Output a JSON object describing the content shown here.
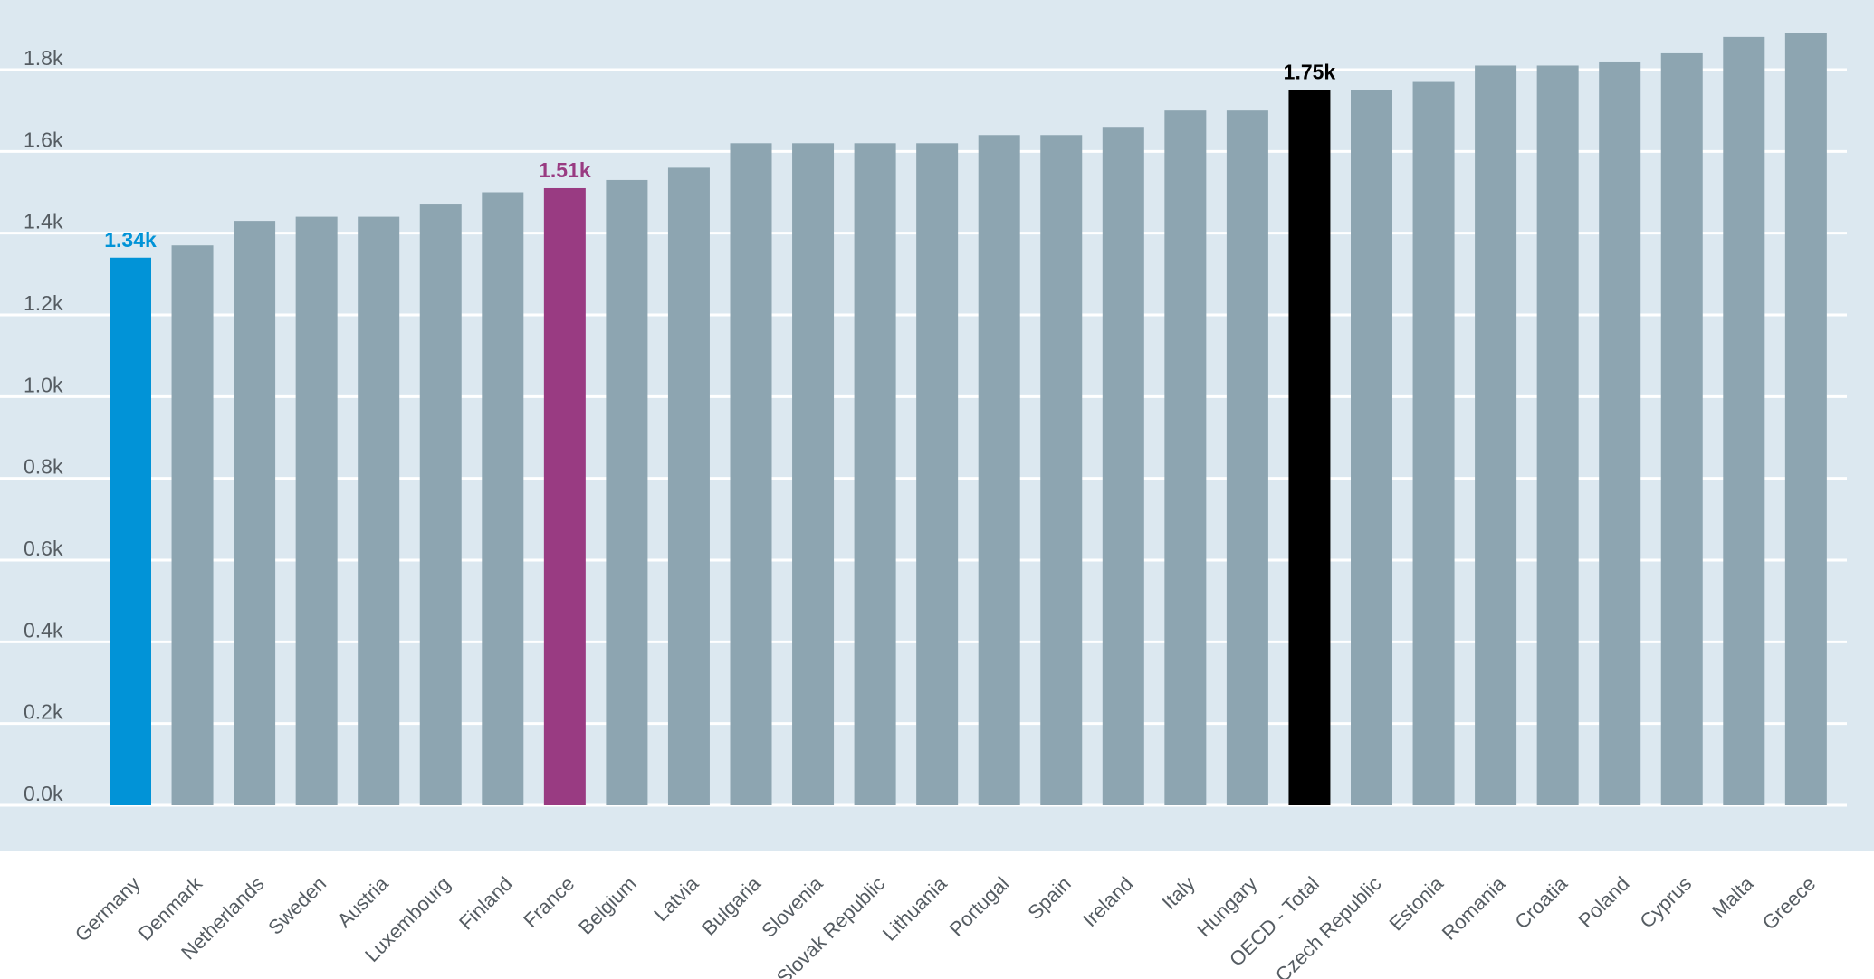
{
  "chart_data": {
    "type": "bar",
    "title": "",
    "xlabel": "",
    "ylabel": "",
    "ylim": [
      0,
      1800
    ],
    "yticks": [
      {
        "value": 0,
        "label": "0.0k"
      },
      {
        "value": 200,
        "label": "0.2k"
      },
      {
        "value": 400,
        "label": "0.4k"
      },
      {
        "value": 600,
        "label": "0.6k"
      },
      {
        "value": 800,
        "label": "0.8k"
      },
      {
        "value": 1000,
        "label": "1.0k"
      },
      {
        "value": 1200,
        "label": "1.2k"
      },
      {
        "value": 1400,
        "label": "1.4k"
      },
      {
        "value": 1600,
        "label": "1.6k"
      },
      {
        "value": 1800,
        "label": "1.8k"
      }
    ],
    "grid": true,
    "legend": "none",
    "colors": {
      "default": "#8da5b1",
      "Germany": "#0193d7",
      "France": "#993b82",
      "OECD - Total": "#000000",
      "plot_background": "#dce8f0",
      "gridline": "#ffffff"
    },
    "categories": [
      "Germany",
      "Denmark",
      "Netherlands",
      "Sweden",
      "Austria",
      "Luxembourg",
      "Finland",
      "France",
      "Belgium",
      "Latvia",
      "Bulgaria",
      "Slovenia",
      "Slovak Republic",
      "Lithuania",
      "Portugal",
      "Spain",
      "Ireland",
      "Italy",
      "Hungary",
      "OECD - Total",
      "Czech Republic",
      "Estonia",
      "Romania",
      "Croatia",
      "Poland",
      "Cyprus",
      "Malta",
      "Greece"
    ],
    "values": [
      1340,
      1370,
      1430,
      1440,
      1440,
      1470,
      1500,
      1510,
      1530,
      1560,
      1620,
      1620,
      1620,
      1620,
      1640,
      1640,
      1660,
      1700,
      1700,
      1750,
      1750,
      1770,
      1810,
      1810,
      1820,
      1840,
      1880,
      1890
    ],
    "data_labels": [
      {
        "category": "Germany",
        "text": "1.34k"
      },
      {
        "category": "France",
        "text": "1.51k"
      },
      {
        "category": "OECD - Total",
        "text": "1.75k"
      }
    ]
  }
}
